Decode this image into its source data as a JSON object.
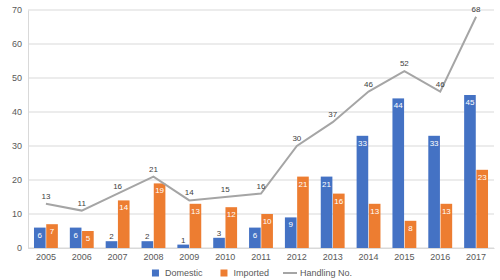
{
  "chart_data": {
    "type": "bar",
    "categories": [
      "2005",
      "2006",
      "2007",
      "2008",
      "2009",
      "2010",
      "2011",
      "2012",
      "2013",
      "2014",
      "2015",
      "2016",
      "2017"
    ],
    "series": [
      {
        "name": "Domestic",
        "type": "bar",
        "color": "#4472c4",
        "values": [
          6,
          6,
          2,
          2,
          1,
          3,
          6,
          9,
          21,
          33,
          44,
          33,
          45
        ]
      },
      {
        "name": "Imported",
        "type": "bar",
        "color": "#ed7d31",
        "values": [
          7,
          5,
          14,
          19,
          13,
          12,
          10,
          21,
          16,
          13,
          8,
          13,
          23
        ]
      },
      {
        "name": "Handling No.",
        "type": "line",
        "color": "#a5a5a5",
        "values": [
          13,
          11,
          16,
          21,
          14,
          15,
          16,
          30,
          37,
          46,
          52,
          46,
          68
        ]
      }
    ],
    "ylim": [
      0,
      70
    ],
    "yticks": [
      0,
      10,
      20,
      30,
      40,
      50,
      60,
      70
    ],
    "grid": true,
    "data_labels": true,
    "legend": "bottom"
  }
}
